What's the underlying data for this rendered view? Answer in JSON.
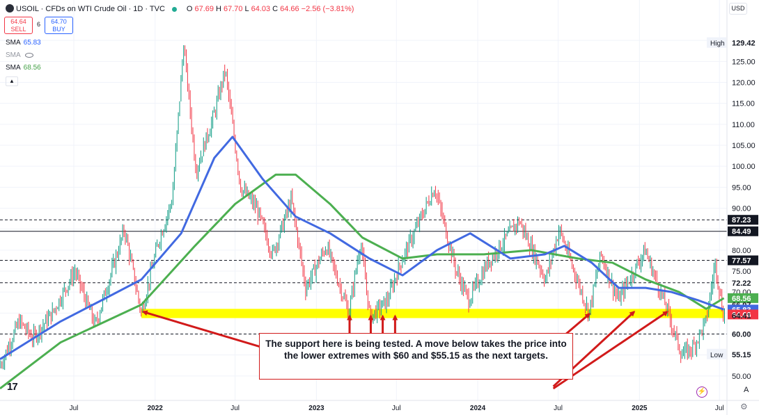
{
  "header": {
    "symbol": "USOIL · CFDs on WTI Crude Oil · 1D · TVC",
    "open_label": "O",
    "open": "67.69",
    "high_label": "H",
    "high": "67.70",
    "low_label": "L",
    "low": "64.03",
    "close_label": "C",
    "close": "64.66",
    "change": "−2.56 (−3.81%)"
  },
  "trade": {
    "sell_price": "64.64",
    "sell_label": "SELL",
    "spread": "6",
    "buy_price": "64.70",
    "buy_label": "BUY"
  },
  "indicators": [
    {
      "name": "SMA",
      "value": "65.83",
      "color": "#2962ff"
    },
    {
      "name": "SMA",
      "value": "",
      "color": "#787b86"
    },
    {
      "name": "SMA",
      "value": "68.56",
      "color": "#43a047"
    }
  ],
  "currency": "USD",
  "annotation": "The support here is being tested. A move below takes the price into the lower extremes with $60 and $55.15 as the next targets.",
  "footer": {
    "a_button": "A"
  },
  "colors": {
    "up": "#089981",
    "down": "#f23645",
    "sma_fast": "#4169e1",
    "sma_slow": "#4caf50",
    "support_zone": "#ffff00",
    "arrow": "#d11a1a"
  },
  "chart_data": {
    "type": "line",
    "ylim": [
      45,
      135
    ],
    "y_ticks": [
      50,
      55,
      60,
      65,
      70,
      75,
      80,
      85,
      90,
      95,
      100,
      105,
      110,
      115,
      120,
      125,
      130
    ],
    "x_labels": [
      "Jul",
      "2022",
      "Jul",
      "2023",
      "Jul",
      "2024",
      "Jul",
      "2025",
      "Jul"
    ],
    "x_label_dates": [
      "2021-07-01",
      "2022-01-01",
      "2022-07-01",
      "2023-01-01",
      "2023-07-01",
      "2024-01-01",
      "2024-07-01",
      "2025-01-01",
      "2025-07-01"
    ],
    "x_range": [
      "2021-01-15",
      "2025-07-18"
    ],
    "price": {
      "name": "USOIL",
      "x": [
        "2021-01-15",
        "2021-03-01",
        "2021-04-01",
        "2021-05-15",
        "2021-07-05",
        "2021-08-20",
        "2021-10-25",
        "2021-12-02",
        "2022-01-10",
        "2022-02-10",
        "2022-03-08",
        "2022-04-05",
        "2022-05-15",
        "2022-06-10",
        "2022-07-15",
        "2022-08-20",
        "2022-09-25",
        "2022-11-07",
        "2022-12-09",
        "2023-01-25",
        "2023-03-17",
        "2023-04-12",
        "2023-05-04",
        "2023-06-12",
        "2023-07-12",
        "2023-09-27",
        "2023-11-15",
        "2023-12-13",
        "2024-01-25",
        "2024-04-05",
        "2024-06-04",
        "2024-07-05",
        "2024-09-10",
        "2024-10-07",
        "2024-11-15",
        "2025-01-15",
        "2025-03-05",
        "2025-04-08",
        "2025-05-05",
        "2025-06-02",
        "2025-06-23",
        "2025-07-11"
      ],
      "values": [
        52,
        63,
        59,
        65,
        75,
        62,
        85,
        65,
        82,
        92,
        129,
        99,
        112,
        123,
        95,
        90,
        79,
        92,
        71,
        81,
        65,
        82,
        64,
        68,
        77,
        95,
        75,
        68,
        77,
        87,
        73,
        85,
        65,
        79,
        68,
        80,
        66,
        55,
        57,
        63,
        77,
        64.66
      ]
    },
    "sma_fast": {
      "name": "SMA",
      "x": [
        "2021-01-15",
        "2021-06-01",
        "2021-09-01",
        "2021-12-01",
        "2022-03-01",
        "2022-05-15",
        "2022-06-25",
        "2022-09-01",
        "2022-11-15",
        "2023-02-01",
        "2023-05-01",
        "2023-07-15",
        "2023-10-01",
        "2023-12-15",
        "2024-03-15",
        "2024-06-01",
        "2024-07-15",
        "2024-09-15",
        "2024-11-15",
        "2025-01-15",
        "2025-03-15",
        "2025-05-15",
        "2025-07-11"
      ],
      "values": [
        54,
        63,
        68,
        73,
        84,
        102,
        107,
        97,
        88,
        84,
        78,
        74,
        80,
        84,
        78,
        79,
        81,
        77,
        71,
        71,
        70,
        68,
        65.83
      ]
    },
    "sma_slow": {
      "name": "SMA",
      "x": [
        "2021-01-15",
        "2021-06-01",
        "2021-12-01",
        "2022-04-01",
        "2022-07-01",
        "2022-10-01",
        "2022-11-15",
        "2023-02-01",
        "2023-04-15",
        "2023-07-15",
        "2023-10-01",
        "2024-01-15",
        "2024-05-01",
        "2024-08-15",
        "2024-11-01",
        "2025-01-15",
        "2025-04-01",
        "2025-06-01",
        "2025-07-11"
      ],
      "values": [
        47,
        58,
        67,
        81,
        91,
        98,
        98,
        91,
        83,
        78,
        79,
        79,
        80,
        78,
        77,
        73,
        70,
        66,
        68.56
      ]
    },
    "support_zone": {
      "from": 63.8,
      "to": 66.0,
      "start": "2021-12-01",
      "end": "2025-07-11"
    },
    "levels": [
      {
        "value": 87.23,
        "style": "dashed"
      },
      {
        "value": 84.49,
        "style": "solid"
      },
      {
        "value": 77.57,
        "style": "dashed"
      },
      {
        "value": 72.22,
        "style": "dashed"
      },
      {
        "value": 60.0,
        "style": "dashed"
      }
    ],
    "price_labels": [
      {
        "value": 129.42,
        "text": "129.42",
        "tag": "High",
        "kind": "plain"
      },
      {
        "value": 87.23,
        "text": "87.23",
        "kind": "dark"
      },
      {
        "value": 84.49,
        "text": "84.49",
        "kind": "dark"
      },
      {
        "value": 77.57,
        "text": "77.57",
        "kind": "dark"
      },
      {
        "value": 72.22,
        "text": "72.22",
        "kind": "plain"
      },
      {
        "value": 68.56,
        "text": "68.56",
        "kind": "green"
      },
      {
        "value": 66.97,
        "text": "66.97",
        "kind": "plain"
      },
      {
        "value": 65.83,
        "text": "65.83",
        "kind": "blue"
      },
      {
        "value": 64.66,
        "text": "64.66",
        "kind": "red"
      },
      {
        "value": 64.41,
        "text": "64.41",
        "kind": "plain"
      },
      {
        "value": 60.0,
        "text": "60.00",
        "kind": "plain"
      },
      {
        "value": 55.15,
        "text": "55.15",
        "tag": "Low",
        "kind": "plain"
      }
    ],
    "support_tests": [
      "2021-12-01",
      "2023-03-17",
      "2023-05-04",
      "2023-05-31",
      "2023-06-28",
      "2024-09-10",
      "2024-12-20",
      "2025-03-05",
      "2025-06-20"
    ],
    "arrows": [
      {
        "from_date": "2023-03-20",
        "from_value": 50.5,
        "to_date": "2021-12-05",
        "to_value": 65.3
      },
      {
        "from_date": "2023-03-17",
        "from_value": 50.5,
        "to_date": "2023-03-17",
        "to_value": 64.3
      },
      {
        "from_date": "2023-05-04",
        "from_value": 50.5,
        "to_date": "2023-05-04",
        "to_value": 64.3
      },
      {
        "from_date": "2023-05-31",
        "from_value": 50.5,
        "to_date": "2023-05-31",
        "to_value": 64.3
      },
      {
        "from_date": "2023-06-28",
        "from_value": 50.5,
        "to_date": "2023-06-28",
        "to_value": 64.3
      },
      {
        "from_date": "2024-04-15",
        "from_value": 51.5,
        "to_date": "2024-09-10",
        "to_value": 64.8
      },
      {
        "from_date": "2024-06-20",
        "from_value": 47.5,
        "to_date": "2024-12-20",
        "to_value": 65.3
      },
      {
        "from_date": "2024-06-20",
        "from_value": 47.0,
        "to_date": "2025-03-05",
        "to_value": 65.3
      }
    ]
  }
}
